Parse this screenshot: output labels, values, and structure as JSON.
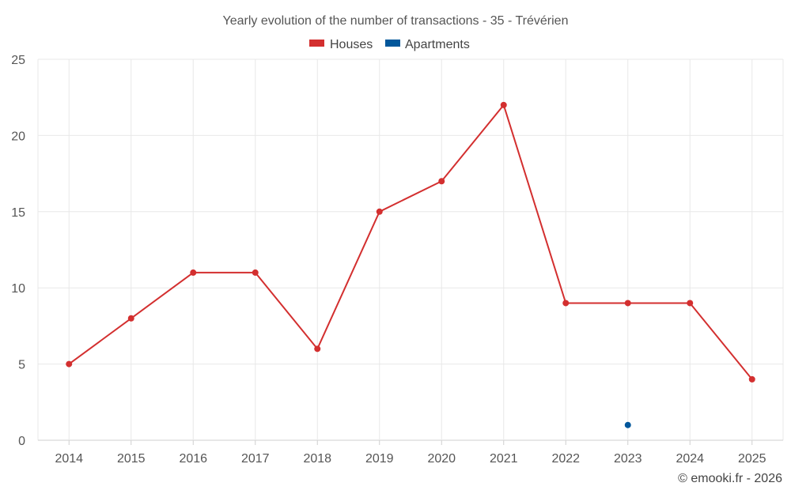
{
  "chart_data": {
    "type": "line",
    "title": "Yearly evolution of the number of transactions - 35 - Trévérien",
    "categories": [
      "2014",
      "2015",
      "2016",
      "2017",
      "2018",
      "2019",
      "2020",
      "2021",
      "2022",
      "2023",
      "2024",
      "2025"
    ],
    "series": [
      {
        "name": "Houses",
        "color": "#d32f2f",
        "values": [
          5,
          8,
          11,
          11,
          6,
          15,
          17,
          22,
          9,
          9,
          9,
          4
        ]
      },
      {
        "name": "Apartments",
        "color": "#01579b",
        "values": [
          null,
          null,
          null,
          null,
          null,
          null,
          null,
          null,
          null,
          1,
          null,
          null
        ]
      }
    ],
    "ylim": [
      0,
      25
    ],
    "yticks": [
      0,
      5,
      10,
      15,
      20,
      25
    ],
    "xlabel": "",
    "ylabel": "",
    "legend_position": "top-center",
    "grid": true
  },
  "footer": "© emooki.fr - 2026"
}
